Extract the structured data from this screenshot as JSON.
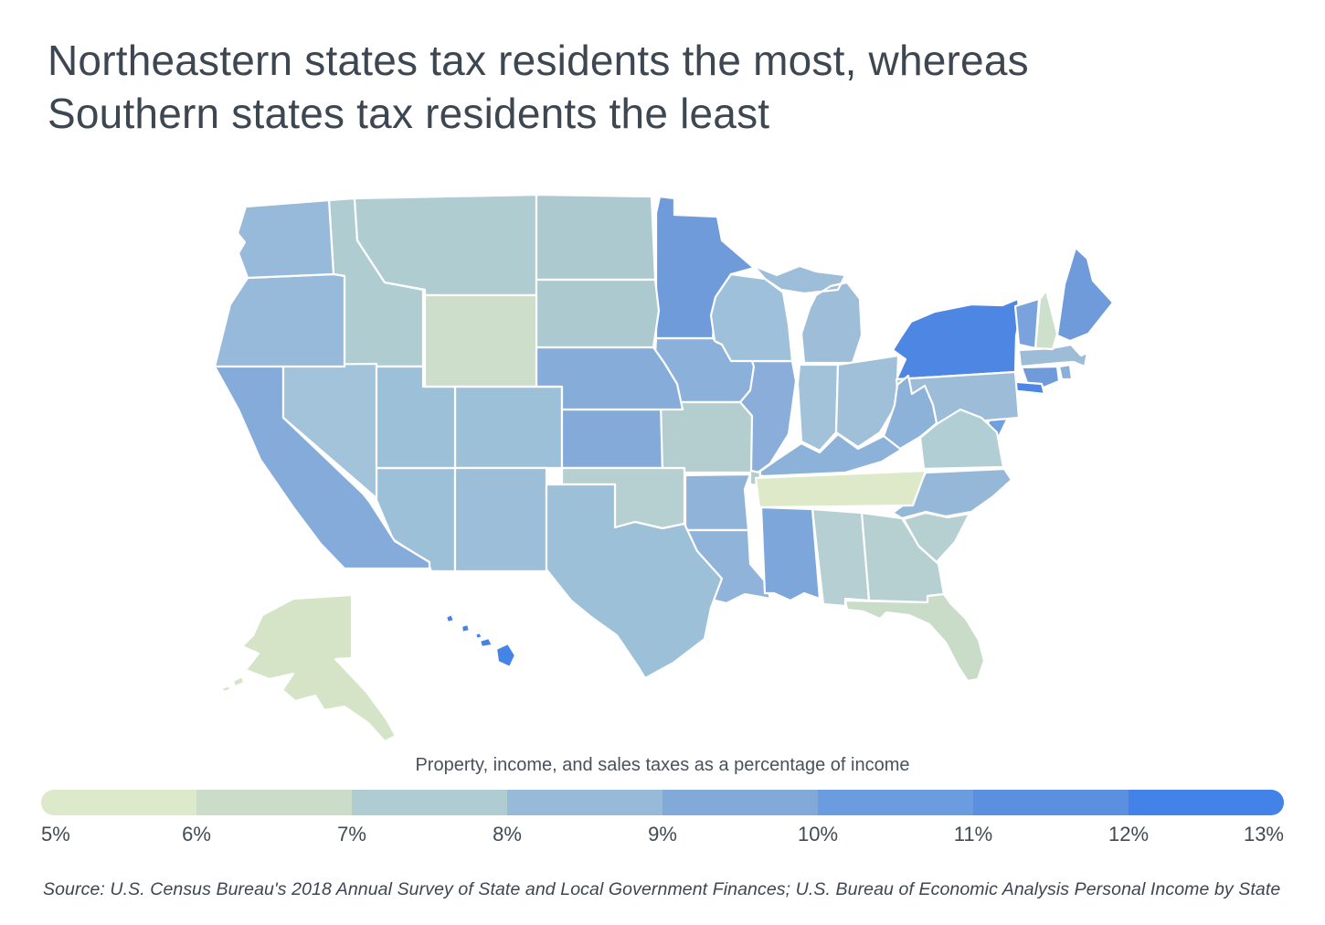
{
  "title": {
    "line1": "Northeastern states tax residents the most, whereas",
    "line2": "Southern states tax residents the least"
  },
  "legend": {
    "title": "Property, income, and sales taxes as a percentage of income",
    "ticks": [
      "5%",
      "6%",
      "7%",
      "8%",
      "9%",
      "10%",
      "11%",
      "12%",
      "13%"
    ],
    "segment_colors": [
      "#dceacb",
      "#cbdcc8",
      "#aeccd1",
      "#97bad8",
      "#82aad8",
      "#6c9ce0",
      "#5b8fe0",
      "#4382e8"
    ]
  },
  "source": "Source: U.S. Census Bureau's 2018 Annual Survey of State and Local Government Finances; U.S. Bureau of Economic Analysis Personal Income by State",
  "colors": {
    "title_text": "#3d4752",
    "legend_text": "#47525c",
    "tick_text": "#3f4a54",
    "state_border": "#ffffff",
    "background": "#ffffff"
  },
  "chart_data": {
    "type": "heatmap",
    "subtype": "us-state-choropleth",
    "title": "Northeastern states tax residents the most, whereas Southern states tax residents the least",
    "legend_label": "Property, income, and sales taxes as a percentage of income",
    "scale": {
      "min": 5,
      "max": 13,
      "unit": "%",
      "tick_labels": [
        "5%",
        "6%",
        "7%",
        "8%",
        "9%",
        "10%",
        "11%",
        "12%",
        "13%"
      ],
      "bucket_colors": [
        "#dceacb",
        "#cbdcc8",
        "#aeccd1",
        "#97bad8",
        "#82aad8",
        "#6c9ce0",
        "#5b8fe0",
        "#4382e8"
      ]
    },
    "legend_position": "bottom",
    "states": [
      {
        "abbr": "AL",
        "name": "Alabama",
        "fill": "#b5cfd2",
        "approx_range": "7-8%"
      },
      {
        "abbr": "AK",
        "name": "Alaska",
        "fill": "#d5e4c6",
        "approx_range": "5-6%"
      },
      {
        "abbr": "AZ",
        "name": "Arizona",
        "fill": "#9dc0d9",
        "approx_range": "8-9%"
      },
      {
        "abbr": "AR",
        "name": "Arkansas",
        "fill": "#90b4d9",
        "approx_range": "9-10%"
      },
      {
        "abbr": "CA",
        "name": "California",
        "fill": "#84abd9",
        "approx_range": "9-10%"
      },
      {
        "abbr": "CO",
        "name": "Colorado",
        "fill": "#9dc0d9",
        "approx_range": "8-9%"
      },
      {
        "abbr": "CT",
        "name": "Connecticut",
        "fill": "#6f9bdb",
        "approx_range": "10-11%"
      },
      {
        "abbr": "DE",
        "name": "Delaware",
        "fill": "#cfe0cd",
        "approx_range": "6-7%"
      },
      {
        "abbr": "FL",
        "name": "Florida",
        "fill": "#c8dcc8",
        "approx_range": "6-7%"
      },
      {
        "abbr": "GA",
        "name": "Georgia",
        "fill": "#b6d0d2",
        "approx_range": "7-8%"
      },
      {
        "abbr": "HI",
        "name": "Hawaii",
        "fill": "#4584e7",
        "approx_range": "12-13%"
      },
      {
        "abbr": "ID",
        "name": "Idaho",
        "fill": "#afcdd1",
        "approx_range": "7-8%"
      },
      {
        "abbr": "IL",
        "name": "Illinois",
        "fill": "#8badda",
        "approx_range": "9-10%"
      },
      {
        "abbr": "IN",
        "name": "Indiana",
        "fill": "#a2c2da",
        "approx_range": "8-9%"
      },
      {
        "abbr": "IA",
        "name": "Iowa",
        "fill": "#8bb0da",
        "approx_range": "9-10%"
      },
      {
        "abbr": "KS",
        "name": "Kansas",
        "fill": "#83aad9",
        "approx_range": "9-10%"
      },
      {
        "abbr": "KY",
        "name": "Kentucky",
        "fill": "#8db2d9",
        "approx_range": "9-10%"
      },
      {
        "abbr": "LA",
        "name": "Louisiana",
        "fill": "#90b4d9",
        "approx_range": "9-10%"
      },
      {
        "abbr": "ME",
        "name": "Maine",
        "fill": "#6f9bdb",
        "approx_range": "10-11%"
      },
      {
        "abbr": "MD",
        "name": "Maryland",
        "fill": "#78a2dc",
        "approx_range": "10-11%"
      },
      {
        "abbr": "MA",
        "name": "Massachusetts",
        "fill": "#9cbcd8",
        "approx_range": "8-9%"
      },
      {
        "abbr": "MI",
        "name": "Michigan",
        "fill": "#9dbdd9",
        "approx_range": "8-9%"
      },
      {
        "abbr": "MN",
        "name": "Minnesota",
        "fill": "#6f9bdb",
        "approx_range": "10-11%"
      },
      {
        "abbr": "MS",
        "name": "Mississippi",
        "fill": "#7da6db",
        "approx_range": "9-10%"
      },
      {
        "abbr": "MO",
        "name": "Missouri",
        "fill": "#b4cdcf",
        "approx_range": "7-8%"
      },
      {
        "abbr": "MT",
        "name": "Montana",
        "fill": "#afcdd1",
        "approx_range": "7-8%"
      },
      {
        "abbr": "NE",
        "name": "Nebraska",
        "fill": "#86acd9",
        "approx_range": "9-10%"
      },
      {
        "abbr": "NV",
        "name": "Nevada",
        "fill": "#a3c3da",
        "approx_range": "8-9%"
      },
      {
        "abbr": "NH",
        "name": "New Hampshire",
        "fill": "#cce0cb",
        "approx_range": "6-7%"
      },
      {
        "abbr": "NJ",
        "name": "New Jersey",
        "fill": "#6f9fdd",
        "approx_range": "10-11%"
      },
      {
        "abbr": "NM",
        "name": "New Mexico",
        "fill": "#9cbed9",
        "approx_range": "8-9%"
      },
      {
        "abbr": "NY",
        "name": "New York",
        "fill": "#4e86e4",
        "approx_range": "12-13%"
      },
      {
        "abbr": "NC",
        "name": "North Carolina",
        "fill": "#95b8d9",
        "approx_range": "8-9%"
      },
      {
        "abbr": "ND",
        "name": "North Dakota",
        "fill": "#abc9cf",
        "approx_range": "7-8%"
      },
      {
        "abbr": "OH",
        "name": "Ohio",
        "fill": "#a0c0d9",
        "approx_range": "8-9%"
      },
      {
        "abbr": "OK",
        "name": "Oklahoma",
        "fill": "#b6cfd0",
        "approx_range": "7-8%"
      },
      {
        "abbr": "OR",
        "name": "Oregon",
        "fill": "#98bada",
        "approx_range": "8-9%"
      },
      {
        "abbr": "PA",
        "name": "Pennsylvania",
        "fill": "#9cbcd8",
        "approx_range": "8-9%"
      },
      {
        "abbr": "RI",
        "name": "Rhode Island",
        "fill": "#8ab0d9",
        "approx_range": "9-10%"
      },
      {
        "abbr": "SC",
        "name": "South Carolina",
        "fill": "#b6d0d2",
        "approx_range": "7-8%"
      },
      {
        "abbr": "SD",
        "name": "South Dakota",
        "fill": "#abc9cf",
        "approx_range": "7-8%"
      },
      {
        "abbr": "TN",
        "name": "Tennessee",
        "fill": "#dde9c8",
        "approx_range": "5-6%"
      },
      {
        "abbr": "TX",
        "name": "Texas",
        "fill": "#9dc0d9",
        "approx_range": "8-9%"
      },
      {
        "abbr": "UT",
        "name": "Utah",
        "fill": "#9dc0d9",
        "approx_range": "8-9%"
      },
      {
        "abbr": "VT",
        "name": "Vermont",
        "fill": "#7aa2dc",
        "approx_range": "10-11%"
      },
      {
        "abbr": "VA",
        "name": "Virginia",
        "fill": "#b2ced5",
        "approx_range": "7-8%"
      },
      {
        "abbr": "WA",
        "name": "Washington",
        "fill": "#98bada",
        "approx_range": "8-9%"
      },
      {
        "abbr": "WV",
        "name": "West Virginia",
        "fill": "#8db2d9",
        "approx_range": "9-10%"
      },
      {
        "abbr": "WI",
        "name": "Wisconsin",
        "fill": "#9fc0da",
        "approx_range": "8-9%"
      },
      {
        "abbr": "WY",
        "name": "Wyoming",
        "fill": "#cddfca",
        "approx_range": "6-7%"
      }
    ]
  }
}
